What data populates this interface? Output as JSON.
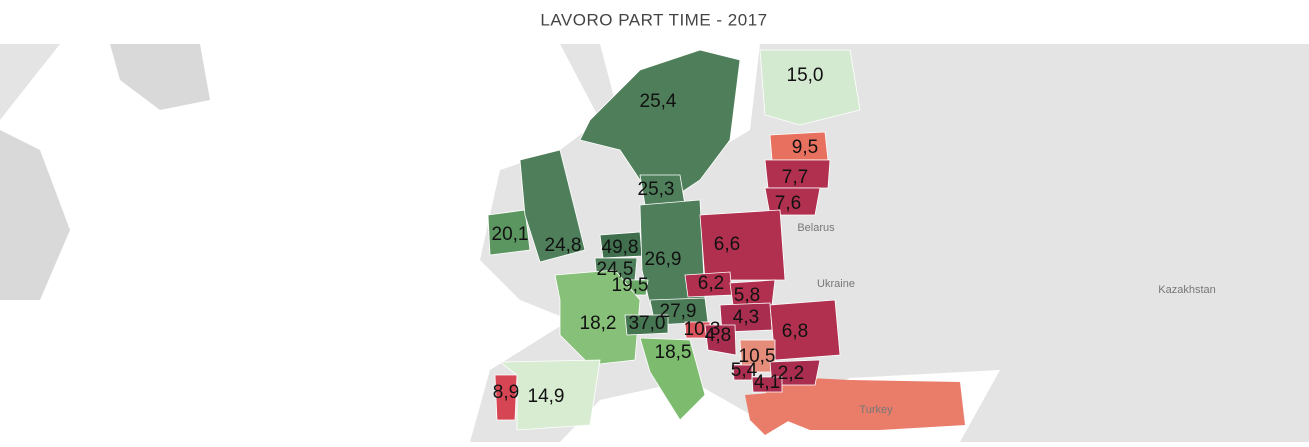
{
  "title": "LAVORO PART TIME - 2017",
  "place_names": [
    "Belarus",
    "Ukraine",
    "Kazakhstan",
    "Turkey"
  ],
  "regions": [
    {
      "value": 25.4,
      "label": "25,4",
      "color": "#4e7f5a"
    },
    {
      "value": 15.0,
      "label": "15,0",
      "color": "#d3ead0"
    },
    {
      "value": 9.5,
      "label": "9,5",
      "color": "#e8705f"
    },
    {
      "value": 7.7,
      "label": "7,7",
      "color": "#b1304f"
    },
    {
      "value": 7.6,
      "label": "7,6",
      "color": "#b1304f"
    },
    {
      "value": 25.3,
      "label": "25,3",
      "color": "#4e7f5a"
    },
    {
      "value": 20.1,
      "label": "20,1",
      "color": "#5b9560"
    },
    {
      "value": 24.8,
      "label": "24,8",
      "color": "#4e7f5a"
    },
    {
      "value": 49.8,
      "label": "49,8",
      "color": "#3f6f4c"
    },
    {
      "value": 24.5,
      "label": "24,5",
      "color": "#4e7f5a"
    },
    {
      "value": 26.9,
      "label": "26,9",
      "color": "#4e7f5a"
    },
    {
      "value": 19.5,
      "label": "19,5",
      "color": "#67a663"
    },
    {
      "value": 6.6,
      "label": "6,6",
      "color": "#b1304f"
    },
    {
      "value": 6.2,
      "label": "6,2",
      "color": "#b1304f"
    },
    {
      "value": 5.8,
      "label": "5,8",
      "color": "#b1304f"
    },
    {
      "value": 27.9,
      "label": "27,9",
      "color": "#4a7b56"
    },
    {
      "value": 4.3,
      "label": "4,3",
      "color": "#a82d4f"
    },
    {
      "value": 18.2,
      "label": "18,2",
      "color": "#86c079"
    },
    {
      "value": 37.0,
      "label": "37,0",
      "color": "#467552"
    },
    {
      "value": 10.3,
      "label": "10,3",
      "color": "#d9545d"
    },
    {
      "value": 4.8,
      "label": "4,8",
      "color": "#a82d4f"
    },
    {
      "value": 6.8,
      "label": "6,8",
      "color": "#b1304f"
    },
    {
      "value": 18.5,
      "label": "18,5",
      "color": "#7dbb6f"
    },
    {
      "value": 10.5,
      "label": "10,5",
      "color": "#e68c7b"
    },
    {
      "value": 5.4,
      "label": "5,4",
      "color": "#a82d4f"
    },
    {
      "value": 2.2,
      "label": "2,2",
      "color": "#a82d4f"
    },
    {
      "value": 4.1,
      "label": "4,1",
      "color": "#a82d4f"
    },
    {
      "value": 8.9,
      "label": "8,9",
      "color": "#d64553"
    },
    {
      "value": 14.9,
      "label": "14,9",
      "color": "#d8ecd2"
    }
  ]
}
